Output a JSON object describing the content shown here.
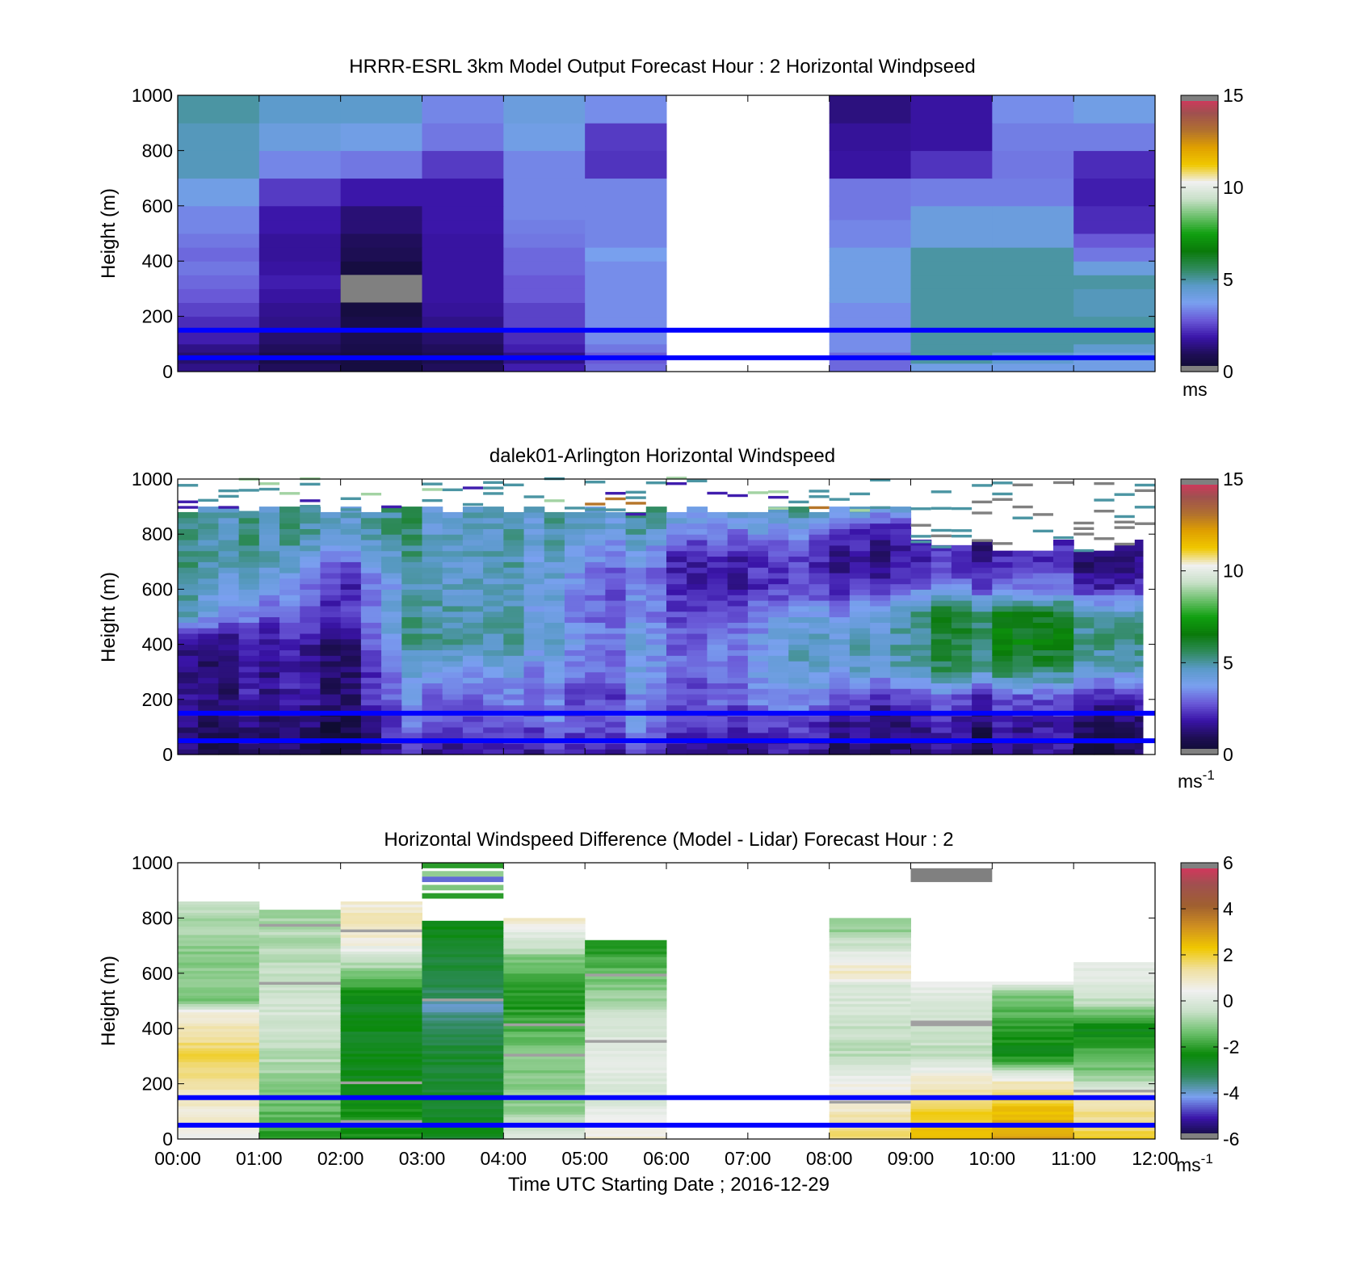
{
  "colors": {
    "speed_scale": [
      "#808080",
      "#0c0c2a",
      "#1e0e55",
      "#3a14a8",
      "#6a5ad8",
      "#7aa0f0",
      "#5a9ac8",
      "#2e8a5a",
      "#0a7a0a",
      "#10a010",
      "#6cc06c",
      "#c8e0c8",
      "#f0f0f0",
      "#f0c800",
      "#e0a000",
      "#b07030",
      "#a05050",
      "#e03060",
      "#808080"
    ],
    "diff_scale": [
      "#808080",
      "#0c0c2a",
      "#3a14a8",
      "#7aa0f0",
      "#2e8a5a",
      "#0a8a0a",
      "#6cc06c",
      "#c8e0c8",
      "#f0f0f0",
      "#f0e0a0",
      "#f0c800",
      "#d09020",
      "#a06030",
      "#a05050",
      "#e03060",
      "#808080"
    ],
    "reference_lines": "#0000ff"
  },
  "chart_data": [
    {
      "type": "heatmap",
      "title": "HRRR-ESRL 3km Model Output   Forecast Hour : 2 Horizontal Windpseed",
      "ylabel": "Height (m)",
      "xlabel": "",
      "ylim": [
        0,
        1000
      ],
      "xlim": [
        0,
        12
      ],
      "y_ticks": [
        "0",
        "200",
        "400",
        "600",
        "800",
        "1000"
      ],
      "x_ticks": [],
      "colorbar": {
        "range": [
          0,
          15
        ],
        "ticks": [
          "0",
          "5",
          "10",
          "15"
        ],
        "unit": "ms",
        "unit_sup": ""
      },
      "reference_lines_m": [
        50,
        150
      ],
      "missing_hours": [
        6,
        7
      ],
      "x_hours": [
        0,
        1,
        2,
        3,
        4,
        5,
        6,
        7,
        8,
        9,
        10,
        11
      ],
      "y_levels": [
        0,
        30,
        70,
        100,
        150,
        200,
        250,
        300,
        350,
        400,
        450,
        500,
        550,
        600,
        700,
        800,
        900,
        1000
      ],
      "values": [
        [
          1.5,
          1.0,
          0.5,
          1.0,
          2.0,
          3.0,
          null,
          null,
          3.0,
          4.0,
          4.0,
          4.0
        ],
        [
          1.2,
          0.7,
          0.5,
          0.8,
          1.5,
          2.8,
          null,
          null,
          3.0,
          5.0,
          4.5,
          4.0
        ],
        [
          1.5,
          1.0,
          0.7,
          1.0,
          2.0,
          3.2,
          null,
          null,
          3.5,
          5.0,
          5.0,
          4.5
        ],
        [
          2.0,
          1.2,
          0.8,
          1.2,
          2.2,
          3.5,
          null,
          null,
          3.5,
          5.0,
          5.0,
          5.0
        ],
        [
          2.2,
          1.5,
          0.7,
          1.5,
          2.5,
          3.5,
          null,
          null,
          3.5,
          5.0,
          5.0,
          5.0
        ],
        [
          2.5,
          1.6,
          0.5,
          1.7,
          2.5,
          3.5,
          null,
          null,
          3.5,
          5.0,
          5.0,
          4.8
        ],
        [
          2.8,
          1.8,
          0.2,
          1.8,
          2.8,
          3.5,
          null,
          null,
          4.0,
          5.0,
          5.0,
          4.8
        ],
        [
          3.0,
          2.0,
          0.2,
          1.8,
          2.8,
          3.5,
          null,
          null,
          4.0,
          5.0,
          5.0,
          5.0
        ],
        [
          3.2,
          1.8,
          0.5,
          1.8,
          3.0,
          3.5,
          null,
          null,
          4.0,
          5.0,
          5.0,
          4.2
        ],
        [
          3.0,
          1.7,
          0.9,
          1.8,
          3.0,
          3.8,
          null,
          null,
          4.0,
          5.0,
          5.0,
          3.2
        ],
        [
          3.2,
          1.7,
          1.0,
          1.8,
          3.2,
          3.4,
          null,
          null,
          3.4,
          4.2,
          4.2,
          2.8
        ],
        [
          3.4,
          1.9,
          1.3,
          1.9,
          3.3,
          3.4,
          null,
          null,
          3.4,
          4.2,
          4.2,
          2.2
        ],
        [
          3.4,
          1.9,
          1.3,
          1.9,
          3.4,
          3.4,
          null,
          null,
          3.2,
          4.2,
          4.2,
          2.2
        ],
        [
          4.0,
          2.4,
          1.9,
          1.9,
          3.4,
          3.4,
          null,
          null,
          3.2,
          3.3,
          3.3,
          2.0
        ],
        [
          4.8,
          3.4,
          3.2,
          2.4,
          3.4,
          2.3,
          null,
          null,
          1.8,
          2.3,
          3.2,
          2.2
        ],
        [
          4.8,
          4.2,
          4.0,
          3.2,
          4.0,
          2.4,
          null,
          null,
          1.7,
          1.8,
          3.3,
          3.3
        ],
        [
          5.0,
          4.6,
          4.6,
          3.4,
          4.2,
          3.5,
          null,
          null,
          1.4,
          1.8,
          3.5,
          4.0
        ]
      ]
    },
    {
      "type": "heatmap",
      "title": "dalek01-Arlington  Horizontal Windspeed",
      "ylabel": "Height (m)",
      "xlabel": "",
      "ylim": [
        0,
        1000
      ],
      "xlim": [
        0,
        12
      ],
      "y_ticks": [
        "0",
        "200",
        "400",
        "600",
        "800",
        "1000"
      ],
      "x_ticks": [],
      "colorbar": {
        "range": [
          0,
          15
        ],
        "ticks": [
          "0",
          "5",
          "10",
          "15"
        ],
        "unit": "ms",
        "unit_sup": "-1"
      },
      "reference_lines_m": [
        50,
        150
      ],
      "time_step_h": 0.25,
      "data_end_h": 11.85,
      "profile_keys_h": [
        0,
        1,
        2,
        3,
        4,
        5,
        6,
        7,
        8,
        9,
        10,
        11,
        12
      ],
      "profile_heights_m": [
        0,
        100,
        200,
        300,
        400,
        500,
        600,
        700,
        800,
        900
      ],
      "profile_values": [
        [
          1.0,
          1.2,
          1.5,
          1.2,
          1.5,
          4.5,
          5.0,
          5.0,
          5.0,
          5.0
        ],
        [
          1.0,
          1.2,
          1.8,
          1.8,
          1.8,
          3.0,
          4.0,
          5.0,
          5.0,
          5.0
        ],
        [
          1.0,
          1.2,
          1.8,
          1.5,
          1.8,
          2.8,
          2.5,
          3.5,
          5.0,
          5.0
        ],
        [
          2.0,
          3.0,
          3.5,
          4.5,
          5.5,
          5.5,
          5.0,
          5.0,
          5.0,
          5.0
        ],
        [
          2.0,
          3.2,
          3.5,
          4.2,
          5.0,
          5.0,
          5.0,
          5.0,
          5.0,
          5.0
        ],
        [
          2.5,
          3.5,
          3.0,
          3.5,
          4.0,
          3.5,
          3.5,
          4.0,
          5.0,
          5.0
        ],
        [
          2.0,
          3.0,
          3.2,
          3.5,
          3.2,
          3.0,
          2.5,
          2.5,
          4.0,
          5.0
        ],
        [
          1.5,
          2.2,
          3.2,
          3.5,
          3.5,
          3.0,
          2.0,
          2.0,
          3.5,
          5.0
        ],
        [
          1.5,
          1.8,
          3.0,
          4.5,
          5.0,
          4.0,
          2.2,
          1.8,
          2.5,
          5.0
        ],
        [
          1.2,
          1.5,
          2.5,
          5.0,
          5.0,
          5.5,
          3.0,
          2.0,
          1.8,
          5.0
        ],
        [
          1.2,
          1.5,
          2.5,
          5.5,
          6.5,
          6.0,
          3.0,
          1.8,
          1.5,
          5.0
        ],
        [
          1.2,
          1.5,
          2.5,
          5.0,
          6.0,
          5.5,
          2.5,
          1.8,
          1.5,
          5.0
        ],
        [
          1.2,
          1.5,
          2.5,
          5.0,
          5.5,
          5.0,
          2.5,
          1.8,
          1.5,
          5.0
        ]
      ]
    },
    {
      "type": "heatmap",
      "title": "Horizontal Windspeed Difference (Model - Lidar) Forecast Hour : 2",
      "ylabel": "Height (m)",
      "xlabel": "Time UTC  Starting Date ; 2016-12-29",
      "ylim": [
        0,
        1000
      ],
      "xlim": [
        0,
        12
      ],
      "y_ticks": [
        "0",
        "200",
        "400",
        "600",
        "800",
        "1000"
      ],
      "x_ticks": [
        "00:00",
        "01:00",
        "02:00",
        "03:00",
        "04:00",
        "05:00",
        "06:00",
        "07:00",
        "08:00",
        "09:00",
        "10:00",
        "11:00",
        "12:00"
      ],
      "colorbar": {
        "range": [
          -6,
          6
        ],
        "ticks": [
          "-6",
          "-4",
          "-2",
          "0",
          "2",
          "4",
          "6"
        ],
        "unit": "ms",
        "unit_sup": "-1"
      },
      "reference_lines_m": [
        50,
        150
      ],
      "missing_hours": [
        6,
        7
      ],
      "segments": [
        {
          "hour": 0,
          "top_m": 860,
          "bands": [
            [
              0,
              0.5
            ],
            [
              150,
              1.0
            ],
            [
              300,
              2.0
            ],
            [
              450,
              0.6
            ],
            [
              500,
              -1.2
            ],
            [
              700,
              -1.0
            ],
            [
              860,
              -0.5
            ]
          ]
        },
        {
          "hour": 1,
          "top_m": 830,
          "bands": [
            [
              0,
              -2.0
            ],
            [
              150,
              -1.2
            ],
            [
              300,
              -0.6
            ],
            [
              450,
              -0.2
            ],
            [
              600,
              -0.5
            ],
            [
              830,
              -0.8
            ]
          ]
        },
        {
          "hour": 2,
          "top_m": 860,
          "bands": [
            [
              0,
              -2.2
            ],
            [
              300,
              -2.5
            ],
            [
              500,
              -2.6
            ],
            [
              620,
              -0.8
            ],
            [
              700,
              0.6
            ],
            [
              800,
              1.2
            ],
            [
              860,
              0.6
            ]
          ]
        },
        {
          "hour": 3,
          "top_m": 790,
          "bands": [
            [
              0,
              -2.6
            ],
            [
              300,
              -2.8
            ],
            [
              420,
              -3.2
            ],
            [
              470,
              -4.0
            ],
            [
              520,
              -3.2
            ],
            [
              700,
              -2.7
            ],
            [
              790,
              -2.4
            ]
          ]
        },
        {
          "hour": 4,
          "top_m": 800,
          "bands": [
            [
              0,
              0.0
            ],
            [
              100,
              -1.0
            ],
            [
              300,
              -1.2
            ],
            [
              500,
              -2.2
            ],
            [
              650,
              -1.2
            ],
            [
              700,
              -0.3
            ],
            [
              760,
              0.3
            ],
            [
              800,
              1.0
            ]
          ]
        },
        {
          "hour": 5,
          "top_m": 720,
          "bands": [
            [
              0,
              0.8
            ],
            [
              150,
              -0.2
            ],
            [
              300,
              0.3
            ],
            [
              450,
              -0.5
            ],
            [
              600,
              -1.5
            ],
            [
              720,
              -2.2
            ]
          ]
        },
        {
          "hour": 8,
          "top_m": 800,
          "bands": [
            [
              0,
              1.8
            ],
            [
              100,
              1.0
            ],
            [
              200,
              0.4
            ],
            [
              300,
              -0.6
            ],
            [
              550,
              0.0
            ],
            [
              600,
              1.0
            ],
            [
              750,
              -1.0
            ],
            [
              800,
              -1.0
            ]
          ]
        },
        {
          "hour": 9,
          "top_m": 570,
          "bands": [
            [
              0,
              2.5
            ],
            [
              100,
              2.0
            ],
            [
              200,
              1.0
            ],
            [
              300,
              -0.5
            ],
            [
              500,
              -0.2
            ],
            [
              570,
              0.5
            ]
          ]
        },
        {
          "hour": 10,
          "top_m": 570,
          "bands": [
            [
              0,
              3.0
            ],
            [
              100,
              2.5
            ],
            [
              200,
              1.0
            ],
            [
              300,
              -2.5
            ],
            [
              520,
              -1.2
            ],
            [
              570,
              0.5
            ]
          ]
        },
        {
          "hour": 11,
          "top_m": 640,
          "bands": [
            [
              0,
              2.0
            ],
            [
              150,
              1.0
            ],
            [
              220,
              -1.0
            ],
            [
              400,
              -2.5
            ],
            [
              520,
              0.0
            ],
            [
              640,
              0.2
            ]
          ]
        }
      ],
      "extra_cells": [
        {
          "hour": 9,
          "from_m": 930,
          "to_m": 980,
          "value": null
        }
      ]
    }
  ]
}
